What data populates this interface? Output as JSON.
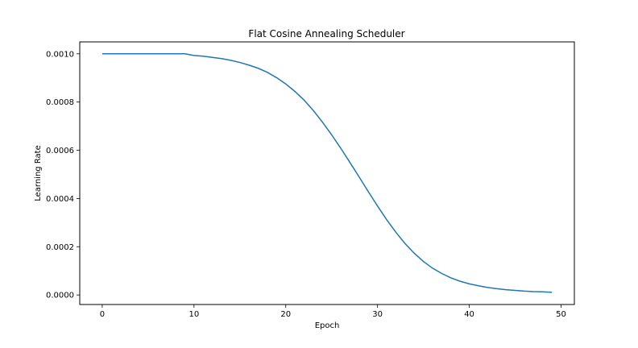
{
  "chart_data": {
    "type": "line",
    "title": "Flat Cosine Annealing Scheduler",
    "xlabel": "Epoch",
    "ylabel": "Learning Rate",
    "xlim": [
      -2.45,
      51.45
    ],
    "ylim": [
      -3.955e-05,
      0.00104945
    ],
    "grid": false,
    "legend": "none",
    "line_color": "#1f77b4",
    "xticks": [
      {
        "value": 0,
        "label": "0"
      },
      {
        "value": 10,
        "label": "10"
      },
      {
        "value": 20,
        "label": "20"
      },
      {
        "value": 30,
        "label": "30"
      },
      {
        "value": 40,
        "label": "40"
      },
      {
        "value": 50,
        "label": "50"
      }
    ],
    "yticks": [
      {
        "value": 0.0,
        "label": "0.0000"
      },
      {
        "value": 0.0002,
        "label": "0.0002"
      },
      {
        "value": 0.0004,
        "label": "0.0004"
      },
      {
        "value": 0.0006,
        "label": "0.0006"
      },
      {
        "value": 0.0008,
        "label": "0.0008"
      },
      {
        "value": 0.001,
        "label": "0.0010"
      }
    ],
    "series": [
      {
        "x": [
          0,
          1,
          2,
          3,
          4,
          5,
          6,
          7,
          8,
          9,
          10,
          11,
          12,
          13,
          14,
          15,
          16,
          17,
          18,
          19,
          20,
          21,
          22,
          23,
          24,
          25,
          26,
          27,
          28,
          29,
          30,
          31,
          32,
          33,
          34,
          35,
          36,
          37,
          38,
          39,
          40,
          41,
          42,
          43,
          44,
          45,
          46,
          47,
          48,
          49
        ],
        "values": [
          0.001,
          0.001,
          0.001,
          0.001,
          0.001,
          0.001,
          0.001,
          0.001,
          0.001,
          0.001,
          0.000993,
          0.00099,
          0.000985,
          0.00098,
          0.000973,
          0.000964,
          0.000953,
          0.00094,
          0.000923,
          0.000901,
          0.000875,
          0.000844,
          0.000808,
          0.000765,
          0.000717,
          0.000664,
          0.000608,
          0.000549,
          0.000489,
          0.000428,
          0.000369,
          0.000312,
          0.00026,
          0.000213,
          0.000173,
          0.000139,
          0.000111,
          8.9e-05,
          7.1e-05,
          5.7e-05,
          4.6e-05,
          3.8e-05,
          3.1e-05,
          2.6e-05,
          2.2e-05,
          1.9e-05,
          1.6e-05,
          1.4e-05,
          1.3e-05,
          1.1e-05
        ]
      }
    ]
  }
}
